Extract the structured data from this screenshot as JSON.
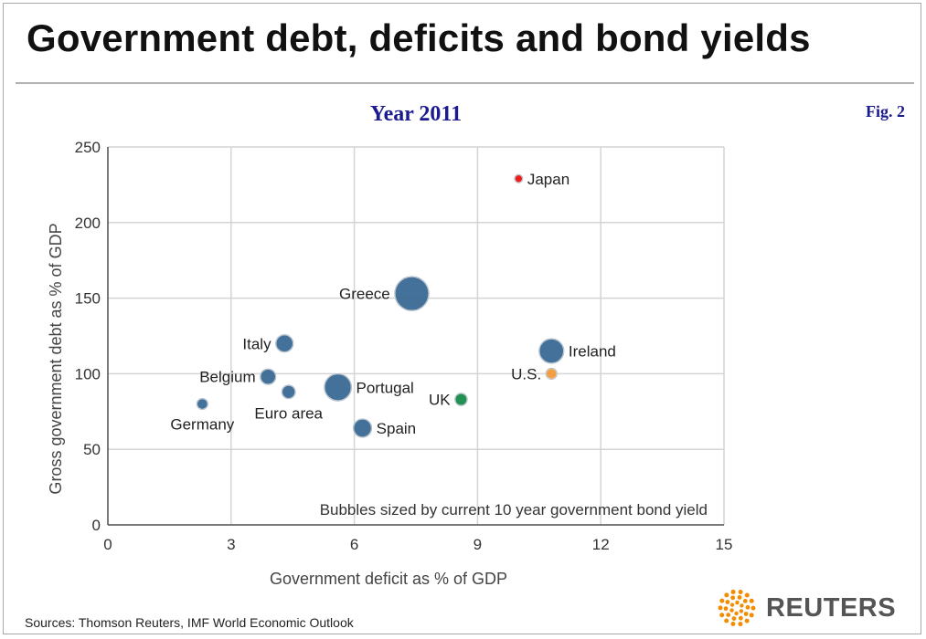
{
  "header": {
    "title": "Government debt, deficits and bond yields",
    "fig_label": "Fig. 2",
    "year_label": "Year 2011"
  },
  "footer": {
    "sources": "Sources: Thomson Reuters, IMF World Economic Outlook",
    "logo_text": "REUTERS",
    "logo_icon": "reuters-dot-burst-icon"
  },
  "colors": {
    "title_blue": "#1b1b8f",
    "default_bubble": "#3b6a94",
    "japan": "#ee1111",
    "us": "#f39a3c",
    "uk": "#178a4a",
    "logo_orange": "#f28c00"
  },
  "chart_data": {
    "type": "bubble",
    "xlabel": "Government deficit as % of GDP",
    "ylabel": "Gross government debt as % of GDP",
    "xlim": [
      0,
      15
    ],
    "ylim": [
      0,
      250
    ],
    "xticks": [
      0,
      3,
      6,
      9,
      12,
      15
    ],
    "yticks": [
      0,
      50,
      100,
      150,
      200,
      250
    ],
    "grid": true,
    "annotation": "Bubbles sized by current 10 year government bond yield",
    "points": [
      {
        "label": "Japan",
        "x": 10.0,
        "y": 229,
        "size": 1.0,
        "color": "#ee1111",
        "label_pos": "right"
      },
      {
        "label": "Greece",
        "x": 7.4,
        "y": 153,
        "size": 19.0,
        "color": "#3b6a94",
        "label_pos": "left"
      },
      {
        "label": "Ireland",
        "x": 10.8,
        "y": 115,
        "size": 10.0,
        "color": "#3b6a94",
        "label_pos": "right"
      },
      {
        "label": "U.S.",
        "x": 10.8,
        "y": 100,
        "size": 2.0,
        "color": "#f39a3c",
        "label_pos": "left"
      },
      {
        "label": "Italy",
        "x": 4.3,
        "y": 120,
        "size": 5.0,
        "color": "#3b6a94",
        "label_pos": "left"
      },
      {
        "label": "Belgium",
        "x": 3.9,
        "y": 98,
        "size": 4.0,
        "color": "#3b6a94",
        "label_pos": "left"
      },
      {
        "label": "Portugal",
        "x": 5.6,
        "y": 91,
        "size": 12.0,
        "color": "#3b6a94",
        "label_pos": "right"
      },
      {
        "label": "Euro area",
        "x": 4.4,
        "y": 88,
        "size": 3.0,
        "color": "#3b6a94",
        "label_pos": "below"
      },
      {
        "label": "UK",
        "x": 8.6,
        "y": 83,
        "size": 2.5,
        "color": "#178a4a",
        "label_pos": "left"
      },
      {
        "label": "Germany",
        "x": 2.3,
        "y": 80,
        "size": 2.0,
        "color": "#3b6a94",
        "label_pos": "below"
      },
      {
        "label": "Spain",
        "x": 6.2,
        "y": 64,
        "size": 5.5,
        "color": "#3b6a94",
        "label_pos": "right"
      }
    ]
  }
}
